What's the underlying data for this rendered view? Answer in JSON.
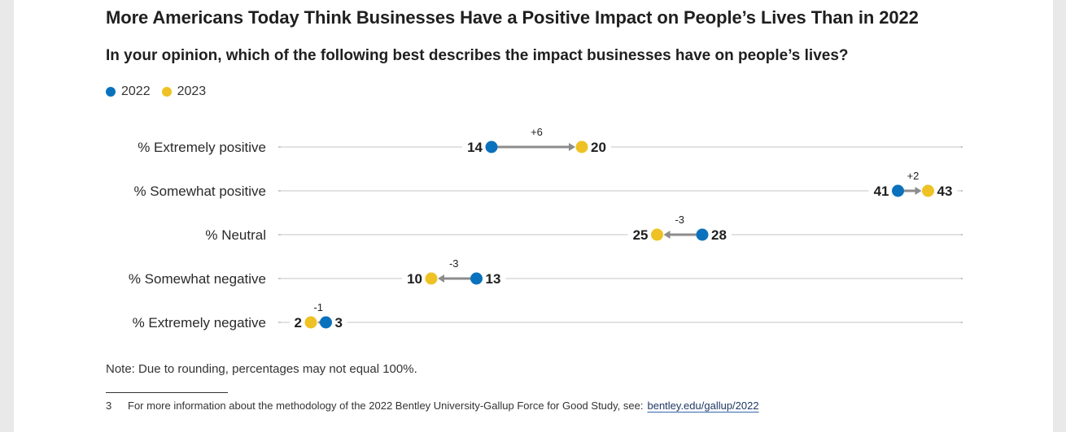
{
  "title": "More Americans Today Think Businesses Have a Positive Impact on People’s Lives Than in 2022",
  "subtitle": "In your opinion, which of the following best describes the impact businesses have on people’s lives?",
  "legend": [
    {
      "label": "2022",
      "color": "#0a72bd"
    },
    {
      "label": "2023",
      "color": "#eec224"
    }
  ],
  "chart_data": {
    "type": "dumbbell",
    "title": "More Americans Today Think Businesses Have a Positive Impact on People’s Lives Than in 2022",
    "subtitle": "In your opinion, which of the following best describes the impact businesses have on people’s lives?",
    "x_range": [
      0,
      45
    ],
    "series_names": [
      "2022",
      "2023"
    ],
    "series_colors": [
      "#0a72bd",
      "#eec224"
    ],
    "arrow_color": "#8c8c8c",
    "categories": [
      {
        "label": "% Extremely positive",
        "v2022": 14,
        "v2023": 20,
        "change": "+6"
      },
      {
        "label": "% Somewhat positive",
        "v2022": 41,
        "v2023": 43,
        "change": "+2"
      },
      {
        "label": "% Neutral",
        "v2022": 28,
        "v2023": 25,
        "change": "-3"
      },
      {
        "label": "% Somewhat negative",
        "v2022": 13,
        "v2023": 10,
        "change": "-3"
      },
      {
        "label": "% Extremely negative",
        "v2022": 3,
        "v2023": 2,
        "change": "-1"
      }
    ]
  },
  "note": "Note: Due to rounding, percentages may not equal 100%.",
  "footnote": {
    "number": "3",
    "text": "For more information about the methodology of the 2022 Bentley University-Gallup Force for Good Study, see:",
    "link": "bentley.edu/gallup/2022"
  }
}
